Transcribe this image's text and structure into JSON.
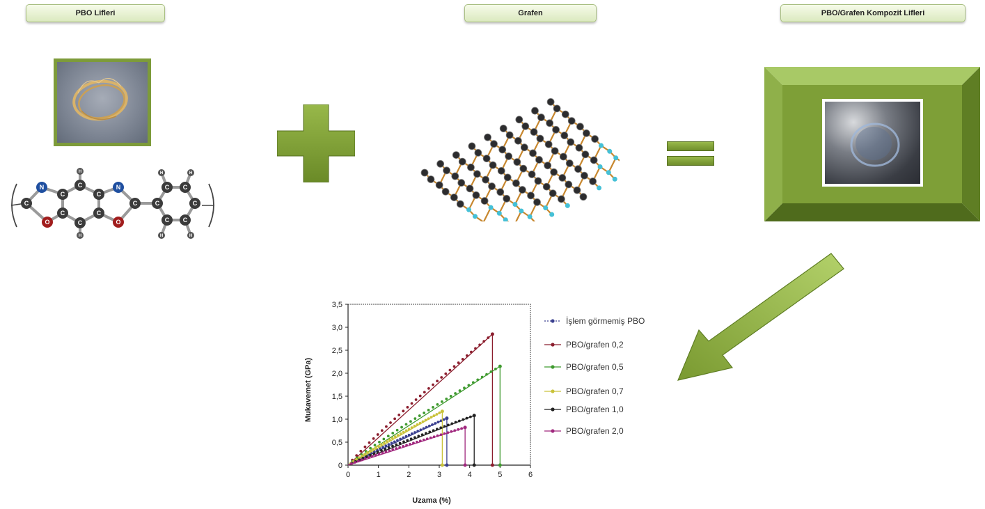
{
  "titles": {
    "pbo": "PBO Lifleri",
    "grafen": "Grafen",
    "kompozit": "PBO/Grafen Kompozit Lifleri"
  },
  "colors": {
    "accent_green": "#7d9b3a",
    "pill_border": "#a9bf82"
  },
  "icons": {
    "plus": "plus-icon",
    "equals": "equals-icon",
    "arrow": "arrow-down-left-icon"
  },
  "molecule_atoms": {
    "N": "N",
    "O": "O",
    "C": "C",
    "H": "H"
  },
  "chart_data": {
    "type": "line",
    "xlabel": "Uzama (%)",
    "ylabel": "Mukavemet (GPa)",
    "xlim": [
      0,
      6
    ],
    "ylim": [
      0,
      3.5
    ],
    "x_ticks": [
      "0",
      "1",
      "2",
      "3",
      "4",
      "5",
      "6"
    ],
    "y_ticks": [
      "0",
      "0,5",
      "1,0",
      "1,5",
      "2,0",
      "2,5",
      "3,0",
      "3,5"
    ],
    "grid": false,
    "legend_position": "right",
    "series": [
      {
        "name": "İşlem görmemiş PBO",
        "color": "#3a3f8f",
        "x": [
          0,
          3.25,
          3.25
        ],
        "y": [
          0,
          1.02,
          0
        ]
      },
      {
        "name": "PBO/grafen 0,2",
        "color": "#8b1e2e",
        "x": [
          0,
          4.75,
          4.75
        ],
        "y": [
          0,
          2.85,
          0
        ]
      },
      {
        "name": "PBO/grafen 0,5",
        "color": "#3f9a2f",
        "x": [
          0,
          5.0,
          5.0
        ],
        "y": [
          0,
          2.15,
          0
        ]
      },
      {
        "name": "PBO/grafen 0,7",
        "color": "#c9c23a",
        "x": [
          0,
          3.1,
          3.1
        ],
        "y": [
          0,
          1.17,
          0
        ]
      },
      {
        "name": "PBO/grafen 1,0",
        "color": "#222222",
        "x": [
          0,
          4.15,
          4.15
        ],
        "y": [
          0,
          1.08,
          0
        ]
      },
      {
        "name": "PBO/grafen 2,0",
        "color": "#a0287e",
        "x": [
          0,
          3.85,
          3.85
        ],
        "y": [
          0,
          0.82,
          0
        ]
      }
    ]
  }
}
